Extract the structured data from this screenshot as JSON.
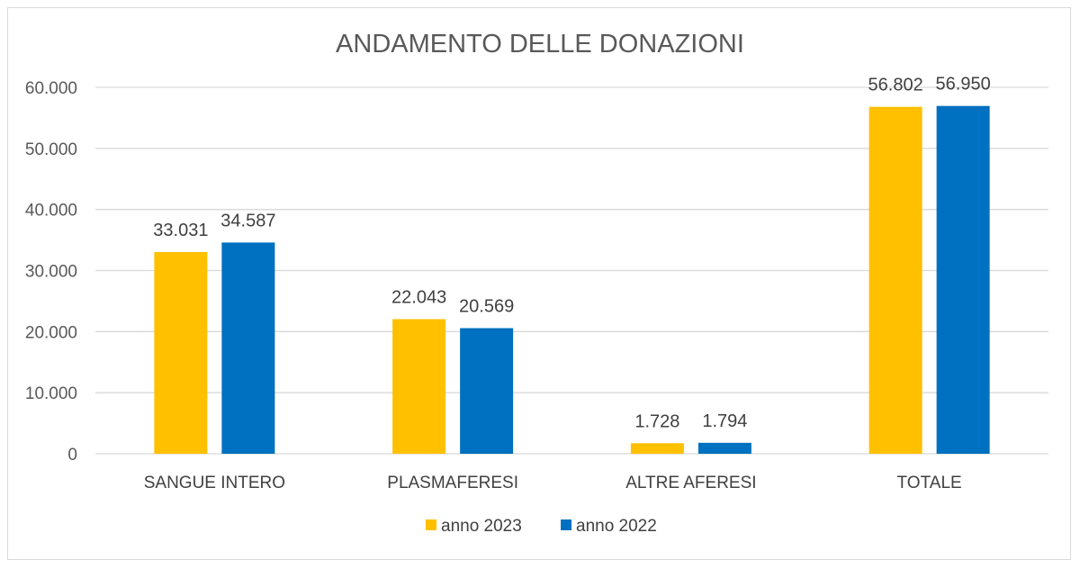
{
  "chart_data": {
    "type": "bar",
    "title": "ANDAMENTO DELLE DONAZIONI",
    "categories": [
      "SANGUE INTERO",
      "PLASMAFERESI",
      "ALTRE AFERESI",
      "TOTALE"
    ],
    "series": [
      {
        "name": "anno 2023",
        "values": [
          33031,
          22043,
          1728,
          56802
        ],
        "labels": [
          "33.031",
          "22.043",
          "1.728",
          "56.802"
        ],
        "color": "#FFC000"
      },
      {
        "name": "anno 2022",
        "values": [
          34587,
          20569,
          1794,
          56950
        ],
        "labels": [
          "34.587",
          "20.569",
          "1.794",
          "56.950"
        ],
        "color": "#0070C0"
      }
    ],
    "ylim": [
      0,
      60000
    ],
    "yticks": [
      0,
      10000,
      20000,
      30000,
      40000,
      50000,
      60000
    ],
    "ytick_labels": [
      "0",
      "10.000",
      "20.000",
      "30.000",
      "40.000",
      "50.000",
      "60.000"
    ],
    "grid": true,
    "legend_position": "bottom"
  }
}
